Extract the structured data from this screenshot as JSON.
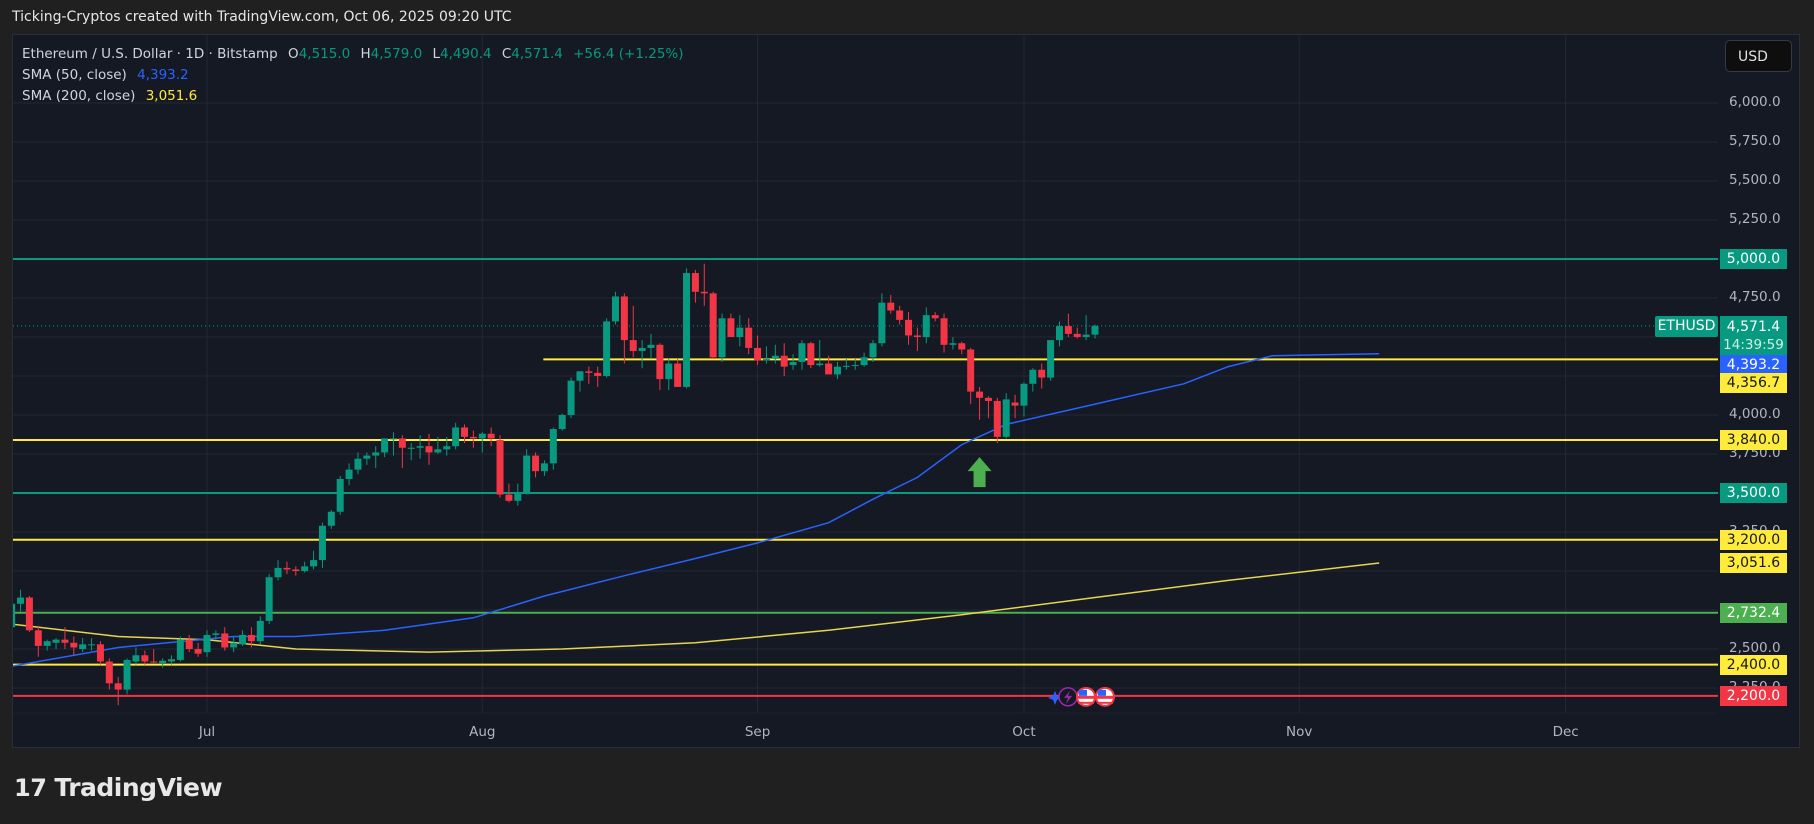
{
  "header": {
    "credit": "Ticking-Cryptos created with TradingView.com, Oct 06, 2025 09:20 UTC"
  },
  "legend": {
    "symbol_desc": "Ethereum / U.S. Dollar · 1D · Bitstamp",
    "open_label": "O",
    "open": "4,515.0",
    "high_label": "H",
    "high": "4,579.0",
    "low_label": "L",
    "low": "4,490.4",
    "close_label": "C",
    "close": "4,571.4",
    "change": "+56.4 (+1.25%)",
    "sma50_label": "SMA (50, close)",
    "sma50_value": "4,393.2",
    "sma200_label": "SMA (200, close)",
    "sma200_value": "3,051.6"
  },
  "currency_button": "USD",
  "price_axis": {
    "ticks": [
      "6,000.0",
      "5,750.0",
      "5,500.0",
      "5,250.0",
      "4,750.0",
      "4,000.0",
      "3,750.0",
      "3,250.0",
      "2,500.0",
      "2,250.0"
    ],
    "tick_values": [
      6000,
      5750,
      5500,
      5250,
      4750,
      4000,
      3750,
      3250,
      2500,
      2250
    ],
    "grid_values": [
      6000,
      5750,
      5500,
      5250,
      5000,
      4750,
      4500,
      4250,
      4000,
      3750,
      3500,
      3250,
      3000,
      2750,
      2500,
      2250
    ]
  },
  "symbol_tag": "ETHUSD",
  "last_price": "4,571.4",
  "countdown": "14:39:59",
  "time_axis": {
    "labels": [
      "Jul",
      "Aug",
      "Sep",
      "Oct",
      "Nov",
      "Dec"
    ],
    "day_offsets": [
      0,
      31,
      62,
      92,
      123,
      153
    ]
  },
  "levels": [
    {
      "price": 5000.0,
      "label": "5,000.0",
      "color": "#089981",
      "text_color": "#ffffff",
      "start_day": -22
    },
    {
      "price": 4356.7,
      "label": "4,356.7",
      "color": "#ffeb3b",
      "text_color": "#131722",
      "start_day": 39
    },
    {
      "price": 3840.0,
      "label": "3,840.0",
      "color": "#ffeb3b",
      "text_color": "#131722",
      "start_day": -22
    },
    {
      "price": 3500.0,
      "label": "3,500.0",
      "color": "#089981",
      "text_color": "#ffffff",
      "start_day": -22
    },
    {
      "price": 3200.0,
      "label": "3,200.0",
      "color": "#ffeb3b",
      "text_color": "#131722",
      "start_day": -22
    },
    {
      "price": 2732.4,
      "label": "2,732.4",
      "color": "#4caf50",
      "text_color": "#ffffff",
      "start_day": -22
    },
    {
      "price": 2400.0,
      "label": "2,400.0",
      "color": "#ffeb3b",
      "text_color": "#131722",
      "start_day": -22
    },
    {
      "price": 2200.0,
      "label": "2,200.0",
      "color": "#f23645",
      "text_color": "#ffffff",
      "start_day": -22
    }
  ],
  "indicator_tags": [
    {
      "label": "4,393.2",
      "price": 4393.2,
      "color": "#2962ff",
      "text_color": "#ffffff"
    },
    {
      "label": "3,051.6",
      "price": 3051.6,
      "color": "#ffeb3b",
      "text_color": "#131722"
    }
  ],
  "annotations": {
    "green_arrow": {
      "day": 87,
      "price_tip": 3730,
      "color": "#4caf50"
    },
    "events": [
      "sparkle-event",
      "lightning-event",
      "us-flag-event",
      "us-flag-event"
    ]
  },
  "colors": {
    "up": "#089981",
    "down": "#f23645",
    "sma50": "#2962ff",
    "sma200": "#e8d44d",
    "grid": "#232834",
    "background": "#151924"
  },
  "chart_data": {
    "type": "candlestick",
    "title": "Ethereum / U.S. Dollar · 1D · Bitstamp",
    "xlabel": "",
    "ylabel": "USD",
    "ylim": [
      2150,
      6200
    ],
    "x_ticks": [
      "Jul",
      "Aug",
      "Sep",
      "Oct",
      "Nov",
      "Dec"
    ],
    "y_ticks": [
      2250,
      2500,
      2750,
      3000,
      3250,
      3500,
      3750,
      4000,
      4250,
      4500,
      4750,
      5000,
      5250,
      5500,
      5750,
      6000
    ],
    "grid": true,
    "legend_position": "top-left",
    "first_day_offset_from_jul1": -22,
    "ohlc": [
      [
        2640,
        2800,
        2560,
        2790
      ],
      [
        2790,
        2880,
        2740,
        2830
      ],
      [
        2830,
        2840,
        2610,
        2620
      ],
      [
        2620,
        2650,
        2450,
        2520
      ],
      [
        2520,
        2560,
        2490,
        2550
      ],
      [
        2540,
        2570,
        2500,
        2560
      ],
      [
        2560,
        2640,
        2500,
        2540
      ],
      [
        2540,
        2580,
        2460,
        2510
      ],
      [
        2500,
        2570,
        2480,
        2530
      ],
      [
        2530,
        2570,
        2490,
        2530
      ],
      [
        2530,
        2550,
        2400,
        2420
      ],
      [
        2420,
        2440,
        2240,
        2280
      ],
      [
        2280,
        2320,
        2140,
        2240
      ],
      [
        2240,
        2440,
        2210,
        2430
      ],
      [
        2420,
        2510,
        2400,
        2460
      ],
      [
        2460,
        2490,
        2400,
        2420
      ],
      [
        2420,
        2500,
        2410,
        2415
      ],
      [
        2410,
        2440,
        2380,
        2425
      ],
      [
        2420,
        2460,
        2400,
        2435
      ],
      [
        2430,
        2580,
        2420,
        2560
      ],
      [
        2560,
        2590,
        2480,
        2500
      ],
      [
        2500,
        2540,
        2450,
        2470
      ],
      [
        2480,
        2620,
        2450,
        2590
      ],
      [
        2590,
        2620,
        2560,
        2600
      ],
      [
        2600,
        2640,
        2490,
        2510
      ],
      [
        2510,
        2580,
        2480,
        2540
      ],
      [
        2530,
        2620,
        2520,
        2590
      ],
      [
        2590,
        2640,
        2510,
        2550
      ],
      [
        2550,
        2710,
        2530,
        2680
      ],
      [
        2680,
        2980,
        2660,
        2960
      ],
      [
        2960,
        3070,
        2940,
        3020
      ],
      [
        3020,
        3060,
        2980,
        3010
      ],
      [
        3010,
        3030,
        2970,
        3000
      ],
      [
        3000,
        3060,
        2990,
        3030
      ],
      [
        3030,
        3130,
        3010,
        3070
      ],
      [
        3070,
        3310,
        3020,
        3290
      ],
      [
        3290,
        3390,
        3270,
        3380
      ],
      [
        3380,
        3610,
        3360,
        3590
      ],
      [
        3590,
        3690,
        3550,
        3650
      ],
      [
        3650,
        3760,
        3620,
        3720
      ],
      [
        3720,
        3760,
        3680,
        3740
      ],
      [
        3740,
        3800,
        3660,
        3760
      ],
      [
        3760,
        3850,
        3730,
        3850
      ],
      [
        3850,
        3890,
        3740,
        3850
      ],
      [
        3850,
        3870,
        3660,
        3790
      ],
      [
        3790,
        3820,
        3710,
        3790
      ],
      [
        3790,
        3870,
        3720,
        3800
      ],
      [
        3800,
        3880,
        3680,
        3760
      ],
      [
        3760,
        3860,
        3750,
        3780
      ],
      [
        3780,
        3860,
        3740,
        3800
      ],
      [
        3800,
        3950,
        3780,
        3920
      ],
      [
        3920,
        3940,
        3820,
        3860
      ],
      [
        3860,
        3900,
        3790,
        3850
      ],
      [
        3850,
        3890,
        3760,
        3880
      ],
      [
        3880,
        3920,
        3800,
        3850
      ],
      [
        3840,
        3870,
        3470,
        3490
      ],
      [
        3490,
        3560,
        3440,
        3450
      ],
      [
        3450,
        3560,
        3420,
        3500
      ],
      [
        3500,
        3780,
        3490,
        3740
      ],
      [
        3740,
        3760,
        3600,
        3640
      ],
      [
        3640,
        3710,
        3610,
        3690
      ],
      [
        3690,
        3920,
        3650,
        3910
      ],
      [
        3910,
        4010,
        3900,
        4000
      ],
      [
        4000,
        4240,
        3980,
        4220
      ],
      [
        4220,
        4280,
        4150,
        4280
      ],
      [
        4280,
        4310,
        4200,
        4270
      ],
      [
        4270,
        4310,
        4180,
        4250
      ],
      [
        4250,
        4620,
        4240,
        4600
      ],
      [
        4600,
        4790,
        4580,
        4760
      ],
      [
        4760,
        4780,
        4330,
        4480
      ],
      [
        4480,
        4700,
        4370,
        4410
      ],
      [
        4410,
        4480,
        4300,
        4430
      ],
      [
        4430,
        4520,
        4360,
        4450
      ],
      [
        4450,
        4460,
        4160,
        4230
      ],
      [
        4230,
        4360,
        4160,
        4330
      ],
      [
        4330,
        4360,
        4180,
        4180
      ],
      [
        4180,
        4940,
        4170,
        4910
      ],
      [
        4910,
        4930,
        4720,
        4790
      ],
      [
        4790,
        4970,
        4700,
        4780
      ],
      [
        4780,
        4790,
        4360,
        4370
      ],
      [
        4370,
        4650,
        4340,
        4620
      ],
      [
        4620,
        4650,
        4540,
        4500
      ],
      [
        4500,
        4640,
        4440,
        4560
      ],
      [
        4560,
        4620,
        4390,
        4430
      ],
      [
        4430,
        4510,
        4320,
        4350
      ],
      [
        4350,
        4440,
        4330,
        4360
      ],
      [
        4360,
        4450,
        4330,
        4380
      ],
      [
        4380,
        4460,
        4250,
        4310
      ],
      [
        4320,
        4390,
        4290,
        4340
      ],
      [
        4340,
        4480,
        4290,
        4460
      ],
      [
        4460,
        4470,
        4300,
        4320
      ],
      [
        4320,
        4480,
        4310,
        4330
      ],
      [
        4330,
        4380,
        4320,
        4260
      ],
      [
        4260,
        4340,
        4230,
        4310
      ],
      [
        4310,
        4360,
        4290,
        4315
      ],
      [
        4315,
        4360,
        4290,
        4320
      ],
      [
        4320,
        4400,
        4310,
        4370
      ],
      [
        4370,
        4480,
        4340,
        4460
      ],
      [
        4460,
        4780,
        4440,
        4720
      ],
      [
        4720,
        4770,
        4650,
        4670
      ],
      [
        4670,
        4700,
        4580,
        4610
      ],
      [
        4610,
        4660,
        4450,
        4510
      ],
      [
        4510,
        4560,
        4410,
        4500
      ],
      [
        4500,
        4690,
        4460,
        4640
      ],
      [
        4640,
        4660,
        4600,
        4620
      ],
      [
        4620,
        4650,
        4400,
        4450
      ],
      [
        4450,
        4500,
        4420,
        4460
      ],
      [
        4460,
        4470,
        4390,
        4420
      ],
      [
        4420,
        4430,
        4070,
        4150
      ],
      [
        4150,
        4180,
        3970,
        4110
      ],
      [
        4110,
        4120,
        3980,
        4090
      ],
      [
        4090,
        4110,
        3820,
        3860
      ],
      [
        3860,
        4140,
        3850,
        4100
      ],
      [
        4080,
        4130,
        3980,
        4060
      ],
      [
        4060,
        4210,
        3990,
        4200
      ],
      [
        4200,
        4300,
        4150,
        4290
      ],
      [
        4290,
        4330,
        4170,
        4240
      ],
      [
        4240,
        4480,
        4220,
        4480
      ],
      [
        4480,
        4600,
        4440,
        4570
      ],
      [
        4570,
        4650,
        4500,
        4520
      ],
      [
        4520,
        4560,
        4490,
        4500
      ],
      [
        4500,
        4640,
        4480,
        4515
      ],
      [
        4515,
        4579,
        4490.4,
        4571.4
      ]
    ],
    "sma50": {
      "points": [
        [
          -22,
          2390
        ],
        [
          -10,
          2510
        ],
        [
          3,
          2580
        ],
        [
          10,
          2580
        ],
        [
          20,
          2620
        ],
        [
          30,
          2700
        ],
        [
          38,
          2840
        ],
        [
          47,
          2970
        ],
        [
          55,
          3080
        ],
        [
          62,
          3180
        ],
        [
          70,
          3310
        ],
        [
          75,
          3460
        ],
        [
          80,
          3600
        ],
        [
          85,
          3810
        ],
        [
          90,
          3940
        ],
        [
          100,
          4070
        ],
        [
          110,
          4200
        ],
        [
          115,
          4310
        ],
        [
          120,
          4380
        ],
        [
          125,
          4385
        ],
        [
          132,
          4393.2
        ]
      ]
    },
    "sma200": {
      "points": [
        [
          -22,
          2660
        ],
        [
          -10,
          2580
        ],
        [
          0,
          2560
        ],
        [
          10,
          2500
        ],
        [
          25,
          2480
        ],
        [
          40,
          2500
        ],
        [
          55,
          2540
        ],
        [
          70,
          2620
        ],
        [
          85,
          2720
        ],
        [
          100,
          2830
        ],
        [
          115,
          2940
        ],
        [
          132,
          3051.6
        ]
      ]
    }
  }
}
